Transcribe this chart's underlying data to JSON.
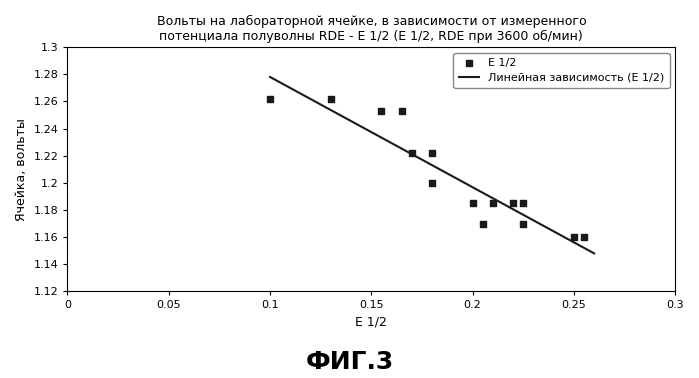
{
  "title_line1": "Вольты на лабораторной ячейке, в зависимости от измеренного",
  "title_line2": "потенциала полуволны RDE - Е 1/2 (E 1/2, RDE при 3600 об/мин)",
  "xlabel": "Е 1/2",
  "ylabel": "Ячейка, вольты",
  "fig_label": "ФИГ.3",
  "scatter_x": [
    0.1,
    0.13,
    0.155,
    0.165,
    0.17,
    0.18,
    0.18,
    0.2,
    0.205,
    0.21,
    0.22,
    0.225,
    0.225,
    0.25,
    0.255
  ],
  "scatter_y": [
    1.262,
    1.262,
    1.253,
    1.253,
    1.222,
    1.222,
    1.2,
    1.185,
    1.17,
    1.185,
    1.185,
    1.17,
    1.185,
    1.16,
    1.16
  ],
  "line_x": [
    0.1,
    0.26
  ],
  "line_y": [
    1.278,
    1.148
  ],
  "xlim": [
    0,
    0.3
  ],
  "ylim": [
    1.12,
    1.3
  ],
  "xticks": [
    0,
    0.05,
    0.1,
    0.15,
    0.2,
    0.25,
    0.3
  ],
  "xtick_labels": [
    "0",
    "0.05",
    "0.1",
    "0.15",
    "0.2",
    "0.25",
    "0.3"
  ],
  "yticks": [
    1.12,
    1.14,
    1.16,
    1.18,
    1.2,
    1.22,
    1.24,
    1.26,
    1.28,
    1.3
  ],
  "ytick_labels": [
    "1.12",
    "1.14",
    "1.16",
    "1.18",
    "1.2",
    "1.22",
    "1.24",
    "1.26",
    "1.28",
    "1.3"
  ],
  "legend_scatter": "Е 1/2",
  "legend_line": "Линейная зависимость (Е 1/2)",
  "scatter_color": "#1a1a1a",
  "line_color": "#1a1a1a",
  "bg_color": "#ffffff",
  "title_fontsize": 9,
  "axis_label_fontsize": 9,
  "tick_fontsize": 8,
  "legend_fontsize": 8,
  "fig_label_fontsize": 18
}
